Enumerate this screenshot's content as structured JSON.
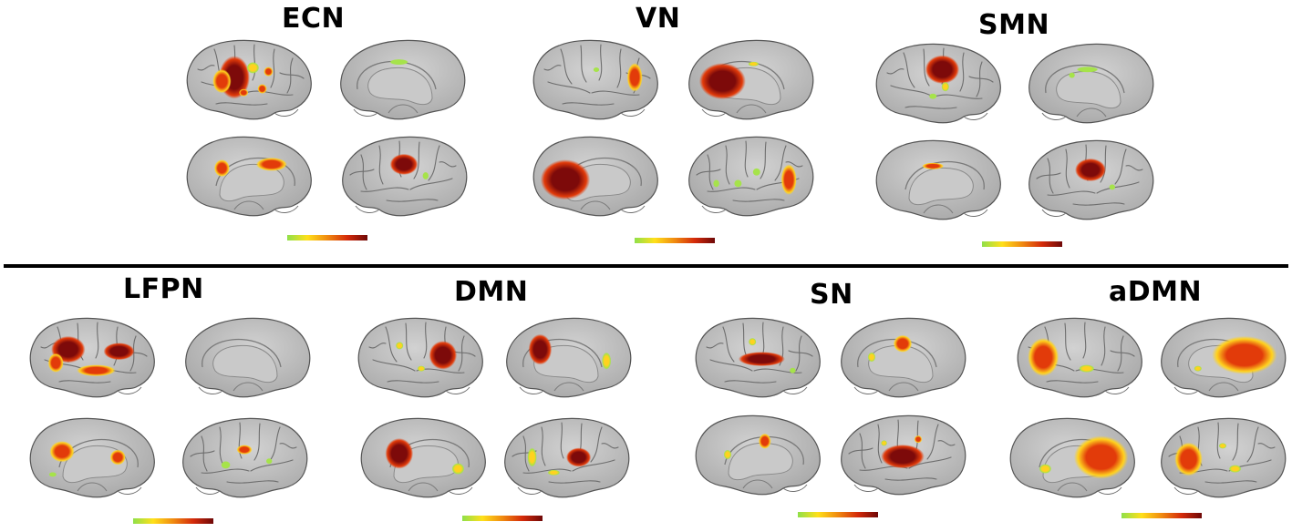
{
  "colors": {
    "cortex": "#a7a7a7",
    "cortex_light": "#d2d2d2",
    "medial_wall": "#c9c9c9",
    "low": "#a6e34a",
    "mid": "#ffd21f",
    "high": "#e23b0a",
    "peak": "#7d0a0a"
  },
  "colorbar": {
    "stops": [
      "#8fe04a",
      "#ffe01a",
      "#f08a10",
      "#d42a0a",
      "#6e0808"
    ]
  },
  "networks": [
    {
      "id": "ecn",
      "label": "ECN",
      "views": [
        {
          "view": "lateral-left",
          "blobs": [
            [
              -0.25,
              -0.05,
              0.2,
              0.45,
              "peak"
            ],
            [
              -0.45,
              0.05,
              0.12,
              0.25,
              "high"
            ],
            [
              0.05,
              -0.3,
              0.08,
              0.12,
              "mid"
            ],
            [
              0.3,
              -0.2,
              0.06,
              0.1,
              "high"
            ],
            [
              0.2,
              0.25,
              0.06,
              0.1,
              "high"
            ],
            [
              -0.1,
              0.35,
              0.06,
              0.08,
              "high"
            ]
          ]
        },
        {
          "view": "medial-right",
          "blobs": [
            [
              0.05,
              -0.45,
              0.12,
              0.06,
              "low"
            ]
          ]
        },
        {
          "view": "medial-left",
          "blobs": [
            [
              -0.45,
              -0.2,
              0.1,
              0.18,
              "high"
            ],
            [
              0.35,
              -0.3,
              0.2,
              0.14,
              "high"
            ]
          ]
        },
        {
          "view": "lateral-right",
          "blobs": [
            [
              0.0,
              -0.3,
              0.18,
              0.22,
              "peak"
            ],
            [
              -0.35,
              0.0,
              0.04,
              0.08,
              "low"
            ]
          ]
        }
      ]
    },
    {
      "id": "vn",
      "label": "VN",
      "views": [
        {
          "view": "lateral-left",
          "blobs": [
            [
              0.62,
              -0.05,
              0.1,
              0.3,
              "high"
            ],
            [
              0.0,
              -0.25,
              0.04,
              0.05,
              "low"
            ]
          ]
        },
        {
          "view": "medial-right",
          "blobs": [
            [
              0.45,
              0.05,
              0.3,
              0.38,
              "peak"
            ],
            [
              -0.05,
              -0.4,
              0.07,
              0.05,
              "mid"
            ]
          ]
        },
        {
          "view": "medial-left",
          "blobs": [
            [
              -0.5,
              0.1,
              0.32,
              0.42,
              "peak"
            ]
          ]
        },
        {
          "view": "lateral-right",
          "blobs": [
            [
              -0.62,
              0.1,
              0.1,
              0.32,
              "high"
            ],
            [
              -0.1,
              -0.1,
              0.05,
              0.08,
              "low"
            ],
            [
              0.2,
              0.2,
              0.05,
              0.08,
              "low"
            ],
            [
              0.55,
              0.2,
              0.04,
              0.08,
              "low"
            ]
          ]
        }
      ]
    },
    {
      "id": "smn",
      "label": "SMN",
      "views": [
        {
          "view": "lateral-left",
          "blobs": [
            [
              0.05,
              -0.35,
              0.22,
              0.3,
              "peak"
            ],
            [
              0.1,
              0.1,
              0.05,
              0.1,
              "mid"
            ],
            [
              -0.1,
              0.35,
              0.05,
              0.06,
              "low"
            ]
          ]
        },
        {
          "view": "medial-right",
          "blobs": [
            [
              0.05,
              -0.35,
              0.14,
              0.06,
              "low"
            ],
            [
              0.3,
              -0.2,
              0.04,
              0.06,
              "low"
            ]
          ]
        },
        {
          "view": "medial-left",
          "blobs": [
            [
              -0.1,
              -0.35,
              0.14,
              0.07,
              "high"
            ]
          ]
        },
        {
          "view": "lateral-right",
          "blobs": [
            [
              0.0,
              -0.25,
              0.2,
              0.24,
              "peak"
            ],
            [
              -0.35,
              0.2,
              0.04,
              0.06,
              "low"
            ]
          ]
        }
      ]
    },
    {
      "id": "lfpn",
      "label": "LFPN",
      "views": [
        {
          "view": "lateral-left",
          "blobs": [
            [
              -0.4,
              -0.2,
              0.22,
              0.28,
              "peak"
            ],
            [
              0.42,
              -0.15,
              0.2,
              0.18,
              "peak"
            ],
            [
              0.05,
              0.35,
              0.25,
              0.12,
              "high"
            ],
            [
              -0.6,
              0.15,
              0.1,
              0.2,
              "high"
            ]
          ]
        },
        {
          "view": "medial-right",
          "blobs": []
        },
        {
          "view": "medial-left",
          "blobs": [
            [
              -0.5,
              -0.15,
              0.16,
              0.22,
              "high"
            ],
            [
              0.4,
              0.0,
              0.1,
              0.16,
              "high"
            ],
            [
              -0.65,
              0.45,
              0.05,
              0.05,
              "low"
            ]
          ]
        },
        {
          "view": "lateral-right",
          "blobs": [
            [
              0.0,
              -0.2,
              0.1,
              0.1,
              "high"
            ],
            [
              0.3,
              0.2,
              0.06,
              0.08,
              "low"
            ],
            [
              -0.4,
              0.1,
              0.04,
              0.06,
              "low"
            ]
          ]
        }
      ]
    },
    {
      "id": "dmn",
      "label": "DMN",
      "views": [
        {
          "view": "lateral-left",
          "blobs": [
            [
              0.35,
              -0.05,
              0.18,
              0.3,
              "peak"
            ],
            [
              -0.35,
              -0.3,
              0.05,
              0.08,
              "mid"
            ],
            [
              0.0,
              0.3,
              0.05,
              0.06,
              "mid"
            ]
          ]
        },
        {
          "view": "medial-right",
          "blobs": [
            [
              0.45,
              -0.2,
              0.15,
              0.32,
              "peak"
            ],
            [
              -0.62,
              0.1,
              0.06,
              0.18,
              "mid"
            ]
          ]
        },
        {
          "view": "medial-left",
          "blobs": [
            [
              -0.4,
              -0.1,
              0.18,
              0.32,
              "peak"
            ],
            [
              0.55,
              0.3,
              0.08,
              0.12,
              "mid"
            ]
          ]
        },
        {
          "view": "lateral-right",
          "blobs": [
            [
              -0.2,
              0.0,
              0.16,
              0.2,
              "peak"
            ],
            [
              0.55,
              0.0,
              0.06,
              0.2,
              "mid"
            ],
            [
              0.2,
              0.4,
              0.08,
              0.06,
              "mid"
            ]
          ]
        }
      ]
    },
    {
      "id": "sn",
      "label": "SN",
      "views": [
        {
          "view": "lateral-left",
          "blobs": [
            [
              0.05,
              0.05,
              0.3,
              0.15,
              "peak"
            ],
            [
              -0.1,
              -0.4,
              0.05,
              0.08,
              "mid"
            ],
            [
              0.55,
              0.35,
              0.04,
              0.06,
              "low"
            ]
          ]
        },
        {
          "view": "medial-right",
          "blobs": [
            [
              0.0,
              -0.35,
              0.12,
              0.18,
              "high"
            ],
            [
              0.5,
              0.0,
              0.05,
              0.1,
              "mid"
            ]
          ]
        },
        {
          "view": "medial-left",
          "blobs": [
            [
              0.1,
              -0.35,
              0.08,
              0.16,
              "high"
            ],
            [
              -0.5,
              0.0,
              0.05,
              0.1,
              "mid"
            ]
          ]
        },
        {
          "view": "lateral-right",
          "blobs": [
            [
              0.0,
              0.05,
              0.28,
              0.25,
              "peak"
            ],
            [
              -0.25,
              -0.4,
              0.05,
              0.08,
              "high"
            ],
            [
              0.3,
              -0.3,
              0.04,
              0.06,
              "mid"
            ]
          ]
        }
      ]
    },
    {
      "id": "admn",
      "label": "aDMN",
      "views": [
        {
          "view": "lateral-left",
          "blobs": [
            [
              -0.6,
              0.0,
              0.2,
              0.4,
              "high"
            ],
            [
              0.1,
              0.3,
              0.1,
              0.08,
              "mid"
            ]
          ]
        },
        {
          "view": "medial-right",
          "blobs": [
            [
              -0.35,
              -0.05,
              0.42,
              0.4,
              "high"
            ],
            [
              0.4,
              0.3,
              0.05,
              0.06,
              "mid"
            ]
          ]
        },
        {
          "view": "medial-left",
          "blobs": [
            [
              0.45,
              0.0,
              0.35,
              0.45,
              "high"
            ],
            [
              -0.45,
              0.3,
              0.08,
              0.1,
              "mid"
            ]
          ]
        },
        {
          "view": "lateral-right",
          "blobs": [
            [
              0.55,
              0.05,
              0.18,
              0.35,
              "high"
            ],
            [
              -0.2,
              0.3,
              0.08,
              0.08,
              "mid"
            ],
            [
              0.0,
              -0.3,
              0.05,
              0.06,
              "mid"
            ]
          ]
        }
      ]
    }
  ]
}
